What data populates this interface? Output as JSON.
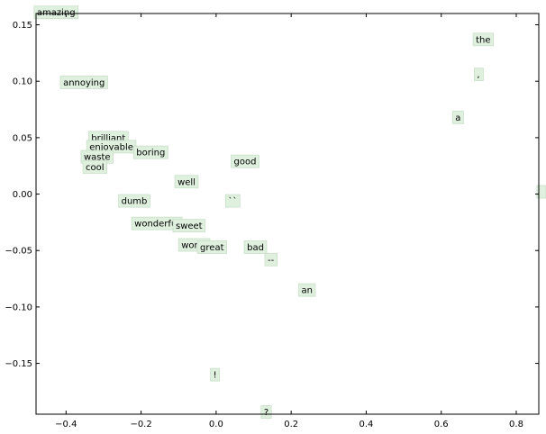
{
  "chart_data": {
    "type": "scatter",
    "title": "",
    "xlabel": "",
    "ylabel": "",
    "xlim": [
      -0.48,
      0.86
    ],
    "ylim": [
      -0.195,
      0.16
    ],
    "grid": false,
    "x_ticks": [
      -0.4,
      -0.2,
      0.0,
      0.2,
      0.4,
      0.6,
      0.8
    ],
    "x_tick_labels": [
      "−0.4",
      "−0.2",
      "0.0",
      "0.2",
      "0.4",
      "0.6",
      "0.8"
    ],
    "y_ticks": [
      0.15,
      0.1,
      0.05,
      0.0,
      -0.05,
      -0.1,
      -0.15
    ],
    "y_tick_labels": [
      "0.15",
      "0.10",
      "0.05",
      "0.00",
      "−0.05",
      "−0.10",
      "−0.15"
    ],
    "label_box_color": "#dff0df",
    "label_box_edge": "#c9dfc9",
    "points": [
      {
        "label": "amazing",
        "x": -0.485,
        "y": 0.161
      },
      {
        "label": "annoying",
        "x": -0.415,
        "y": 0.099
      },
      {
        "label": "brilliant",
        "x": -0.34,
        "y": 0.05
      },
      {
        "label": "enjoyable",
        "x": -0.345,
        "y": 0.042
      },
      {
        "label": "boring",
        "x": -0.22,
        "y": 0.037
      },
      {
        "label": "waste",
        "x": -0.36,
        "y": 0.033
      },
      {
        "label": "cool",
        "x": -0.355,
        "y": 0.024
      },
      {
        "label": "good",
        "x": 0.04,
        "y": 0.029
      },
      {
        "label": "well",
        "x": -0.11,
        "y": 0.011
      },
      {
        "label": "``",
        "x": 0.025,
        "y": -0.006
      },
      {
        "label": "dumb",
        "x": -0.26,
        "y": -0.006
      },
      {
        "label": "wonderful",
        "x": -0.225,
        "y": -0.026
      },
      {
        "label": "sweet",
        "x": -0.115,
        "y": -0.028
      },
      {
        "label": "worth",
        "x": -0.1,
        "y": -0.045
      },
      {
        "label": "great",
        "x": -0.05,
        "y": -0.047
      },
      {
        "label": "bad",
        "x": 0.075,
        "y": -0.047
      },
      {
        "label": "--",
        "x": 0.13,
        "y": -0.058
      },
      {
        "label": "an",
        "x": 0.22,
        "y": -0.085
      },
      {
        "label": "the",
        "x": 0.685,
        "y": 0.137
      },
      {
        "label": ",",
        "x": 0.688,
        "y": 0.106
      },
      {
        "label": "a",
        "x": 0.63,
        "y": 0.068
      },
      {
        "label": "!",
        "x": -0.015,
        "y": -0.16
      },
      {
        "label": "?",
        "x": 0.12,
        "y": -0.193
      },
      {
        "label": "",
        "x": 0.855,
        "y": 0.002
      }
    ]
  }
}
